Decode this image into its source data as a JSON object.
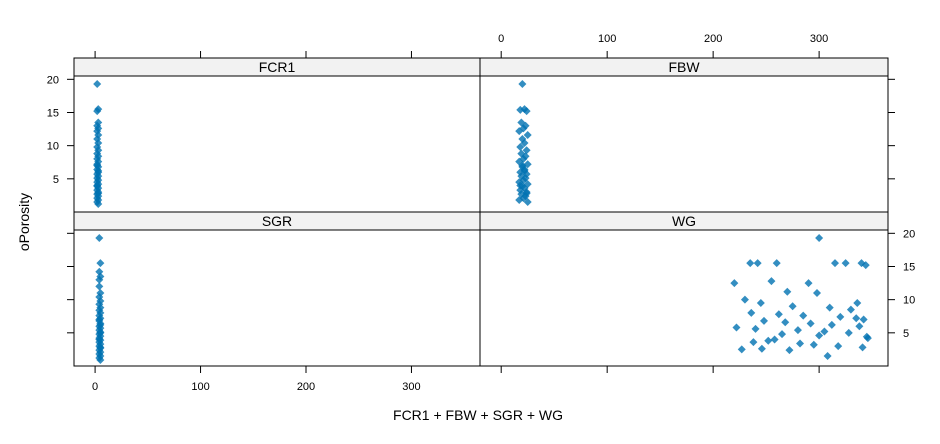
{
  "chart_data": {
    "type": "scatter",
    "layout": "lattice 2x2 panels",
    "xlabel": "FCR1 + FBW + SGR + WG",
    "ylabel": "oPorosity",
    "xlim": [
      -20,
      365
    ],
    "ylim": [
      0,
      20.5
    ],
    "x_ticks": [
      0,
      100,
      200,
      300
    ],
    "y_ticks": [
      5,
      10,
      15,
      20
    ],
    "strip_color": "#f2f2f2",
    "point_color": "#0072b2",
    "panels": [
      {
        "name": "FCR1",
        "x": [
          2,
          3,
          2,
          3,
          2,
          3,
          2,
          3,
          2,
          3,
          2,
          3,
          2,
          3,
          2,
          3,
          2,
          3,
          2,
          3,
          2,
          3,
          2,
          3,
          2,
          3,
          2,
          3,
          2,
          3,
          2,
          3,
          2,
          3,
          2,
          3,
          2,
          3,
          2,
          3
        ],
        "y": [
          19.3,
          15.5,
          15.2,
          13.5,
          13.0,
          12.6,
          12.2,
          11.6,
          11.0,
          10.4,
          9.8,
          9.3,
          8.8,
          8.4,
          8.0,
          7.6,
          7.2,
          6.8,
          6.4,
          6.0,
          5.7,
          5.4,
          5.1,
          4.8,
          4.5,
          4.2,
          3.9,
          3.6,
          3.3,
          3.0,
          2.7,
          2.4,
          2.1,
          1.8,
          1.5,
          1.2,
          7.0,
          6.2,
          4.0,
          2.8
        ]
      },
      {
        "name": "FBW",
        "x": [
          20,
          22,
          18,
          24,
          19,
          23,
          21,
          17,
          25,
          20,
          22,
          18,
          24,
          19,
          23,
          21,
          17,
          25,
          20,
          22,
          18,
          24,
          19,
          23,
          21,
          17,
          25,
          20,
          22,
          18,
          24,
          19,
          23,
          21,
          17,
          25,
          20,
          22,
          18,
          24
        ],
        "y": [
          19.3,
          15.5,
          15.4,
          15.2,
          13.5,
          13.0,
          12.6,
          12.2,
          11.6,
          11.0,
          10.4,
          9.8,
          9.3,
          8.8,
          8.4,
          8.0,
          7.6,
          7.2,
          6.8,
          6.4,
          6.0,
          5.7,
          5.4,
          5.1,
          4.8,
          4.5,
          4.2,
          3.9,
          3.6,
          3.3,
          3.0,
          2.7,
          2.4,
          2.1,
          1.8,
          1.5,
          7.0,
          6.2,
          4.0,
          2.8
        ]
      },
      {
        "name": "SGR",
        "x": [
          4,
          5,
          4,
          5,
          4,
          5,
          4,
          5,
          4,
          5,
          4,
          5,
          4,
          5,
          4,
          5,
          4,
          5,
          4,
          5,
          4,
          5,
          4,
          5,
          4,
          5,
          4,
          5,
          4,
          5,
          4,
          5,
          4,
          5,
          4,
          5,
          4,
          5,
          4,
          5
        ],
        "y": [
          19.3,
          15.5,
          14.2,
          13.5,
          13.0,
          11.0,
          10.4,
          9.8,
          9.3,
          8.8,
          8.4,
          8.0,
          7.6,
          7.2,
          6.8,
          6.4,
          6.0,
          5.7,
          5.4,
          5.1,
          4.8,
          4.5,
          4.2,
          3.9,
          3.6,
          3.3,
          3.0,
          2.7,
          2.4,
          2.1,
          1.8,
          1.5,
          1.2,
          0.9,
          7.0,
          6.2,
          4.0,
          2.8,
          12.0,
          5.0
        ]
      },
      {
        "name": "WG",
        "x": [
          300,
          235,
          242,
          260,
          315,
          325,
          220,
          290,
          340,
          344,
          255,
          270,
          298,
          230,
          245,
          275,
          310,
          330,
          236,
          262,
          285,
          320,
          335,
          342,
          248,
          268,
          292,
          312,
          338,
          222,
          240,
          280,
          305,
          328,
          265,
          300,
          345,
          346,
          258,
          252,
          238,
          282,
          295,
          318,
          341,
          246,
          272,
          308,
          227,
          336
        ],
        "y": [
          19.3,
          15.5,
          15.5,
          15.5,
          15.5,
          15.5,
          12.5,
          12.5,
          15.5,
          15.2,
          12.8,
          11.2,
          11.0,
          10.0,
          9.5,
          9.0,
          8.8,
          8.5,
          8.0,
          7.8,
          7.6,
          7.4,
          7.2,
          7.0,
          6.8,
          6.6,
          6.4,
          6.2,
          6.0,
          5.8,
          5.6,
          5.4,
          5.2,
          5.0,
          4.8,
          4.6,
          4.4,
          4.2,
          4.0,
          3.8,
          3.6,
          3.4,
          3.2,
          3.0,
          2.8,
          2.6,
          2.4,
          1.5,
          2.5,
          9.5
        ]
      }
    ]
  }
}
